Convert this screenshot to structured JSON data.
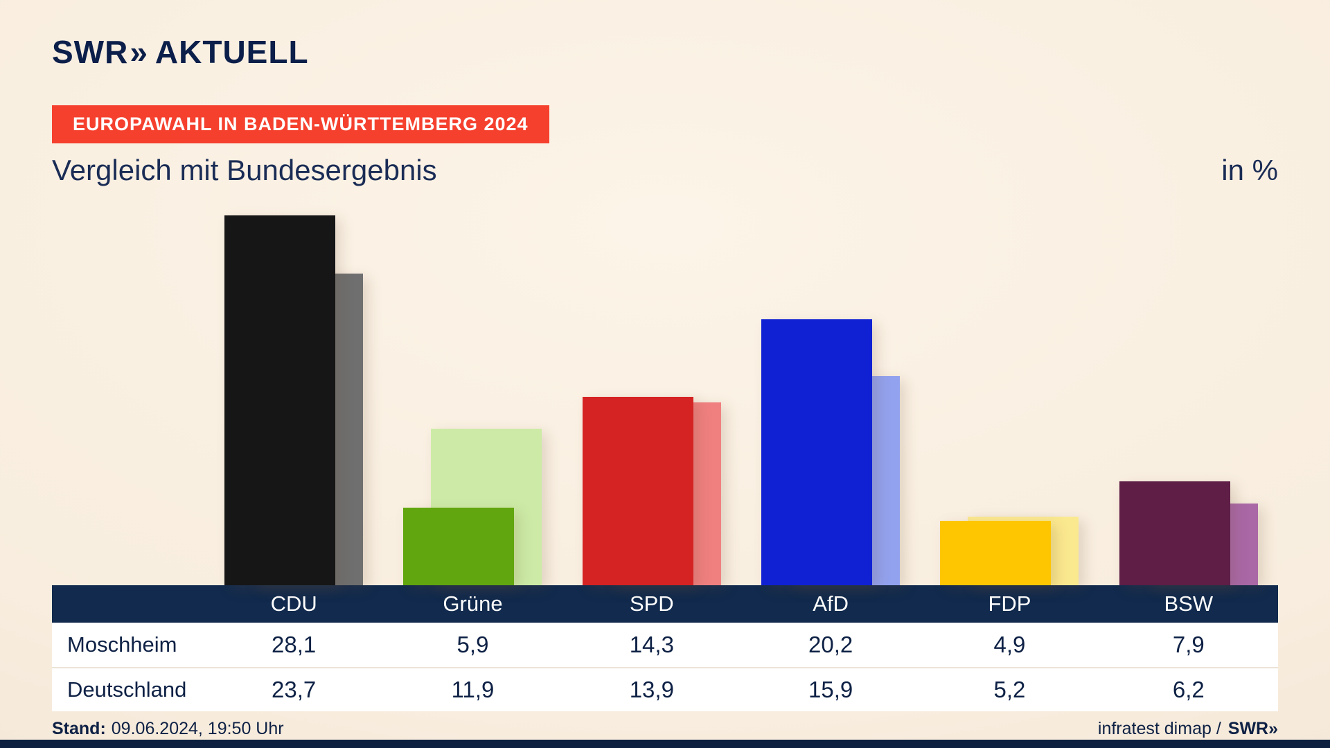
{
  "header": {
    "brand": "SWR",
    "brand_chevrons": "»",
    "brand_suffix": "AKTUELL",
    "badge": "EUROPAWAHL IN BADEN-WÜRTTEMBERG 2024",
    "title": "Vergleich mit Bundesergebnis",
    "unit": "in %"
  },
  "chart_data": {
    "type": "bar",
    "title": "Vergleich mit Bundesergebnis",
    "unit": "in %",
    "grid": false,
    "legend_position": "table",
    "ylim": [
      0,
      30
    ],
    "categories": [
      "CDU",
      "Grüne",
      "SPD",
      "AfD",
      "FDP",
      "BSW"
    ],
    "category_keys": [
      "cdu",
      "gruene",
      "spd",
      "afd",
      "fdp",
      "bsw"
    ],
    "series": [
      {
        "name": "Moschheim",
        "values": [
          28.1,
          5.9,
          14.3,
          20.2,
          4.9,
          7.9
        ],
        "labels": [
          "28,1",
          "5,9",
          "14,3",
          "20,2",
          "4,9",
          "7,9"
        ]
      },
      {
        "name": "Deutschland",
        "values": [
          23.7,
          11.9,
          13.9,
          15.9,
          5.2,
          6.2
        ],
        "labels": [
          "23,7",
          "11,9",
          "13,9",
          "15,9",
          "5,2",
          "6,2"
        ]
      }
    ],
    "bar_colors": {
      "cdu": [
        "#161616",
        "#6f6f6f"
      ],
      "gruene": [
        "#61a60e",
        "#cdeba6"
      ],
      "spd": [
        "#d52323",
        "#f08080"
      ],
      "afd": [
        "#1021d4",
        "#93a2ee"
      ],
      "fdp": [
        "#fdc600",
        "#fbe98f"
      ],
      "bsw": [
        "#5e1e46",
        "#aa68a6"
      ]
    }
  },
  "footer": {
    "stand_label": "Stand:",
    "stand_value": "09.06.2024, 19:50 Uhr",
    "source": "infratest dimap /",
    "source_brand": "SWR",
    "source_chevrons": "»"
  }
}
